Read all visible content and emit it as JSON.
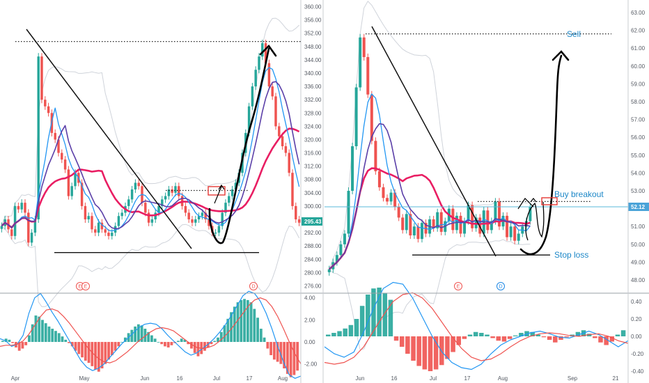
{
  "colors": {
    "up": "#26a69a",
    "down": "#ef5350",
    "ma_slow": "#e91e63",
    "ma_fast": "#5b3fa8",
    "ma_blue": "#2196f3",
    "band": "#cfd3da",
    "macd": "#2196f3",
    "signal": "#ef5350",
    "annotation": "#1e88c8",
    "price_tag": "#26a69a",
    "price_tag_right": "#4aa3d8"
  },
  "chart_data": [
    {
      "type": "candlestick",
      "panel": "left",
      "ylim": [
        274,
        362
      ],
      "y_ticks": [
        "360.00",
        "356.00",
        "352.00",
        "348.00",
        "344.00",
        "340.00",
        "336.00",
        "332.00",
        "328.00",
        "324.00",
        "320.00",
        "316.00",
        "312.00",
        "308.00",
        "304.00",
        "300.00",
        "296.00",
        "292.00",
        "288.00",
        "284.00",
        "280.00",
        "276.00"
      ],
      "x_labels": [
        "Apr",
        "May",
        "Jun",
        "16",
        "Jul",
        "17",
        "Aug"
      ],
      "last_price": "295.43",
      "events": [
        {
          "label": "E",
          "kind": "earnings"
        },
        {
          "label": "E",
          "kind": "earnings"
        },
        {
          "label": "D",
          "kind": "dividend"
        }
      ],
      "lines": {
        "resistance": 349.5,
        "breakout": 304.7,
        "support": 286
      },
      "closes": [
        294,
        296,
        293,
        291,
        300,
        299,
        301,
        298,
        289,
        292,
        296,
        345,
        332,
        330,
        328,
        322,
        320,
        316,
        314,
        311,
        303,
        306,
        310,
        307,
        300,
        296,
        297,
        293,
        292,
        295,
        293,
        292,
        291,
        292,
        294,
        297,
        298,
        300,
        302,
        305,
        307,
        306,
        301,
        298,
        295,
        296,
        298,
        300,
        302,
        303,
        305,
        304,
        306,
        303,
        300,
        298,
        296,
        295,
        296,
        297,
        298,
        296,
        294,
        292,
        292,
        294,
        298,
        301,
        303,
        305,
        307,
        310,
        316,
        322,
        330,
        336,
        341,
        345,
        349,
        343,
        336,
        333,
        324,
        321,
        318,
        316,
        310,
        300,
        296,
        295
      ],
      "macd": {
        "ylim": [
          -3.6,
          4.3
        ],
        "y_ticks": [
          "4.00",
          "2.00",
          "0.00",
          "-2.00"
        ],
        "histogram": [
          0.1,
          0.3,
          0.2,
          -0.1,
          -0.5,
          -0.8,
          -0.6,
          -0.3,
          0.6,
          1.6,
          2.4,
          2.3,
          2.0,
          1.7,
          1.4,
          1.2,
          1.0,
          0.8,
          0.5,
          0.2,
          -0.1,
          -0.4,
          -0.8,
          -1.1,
          -1.4,
          -1.7,
          -1.9,
          -2.2,
          -2.5,
          -2.7,
          -2.4,
          -2.0,
          -1.6,
          -1.2,
          -0.8,
          -0.4,
          0.0,
          0.4,
          0.8,
          1.1,
          1.4,
          1.6,
          1.5,
          1.2,
          0.9,
          0.6,
          0.3,
          0.0,
          -0.2,
          -0.4,
          -0.5,
          -0.3,
          -0.1,
          0.1,
          0.3,
          0.2,
          -0.2,
          -0.6,
          -1.0,
          -1.3,
          -1.1,
          -0.8,
          -0.5,
          -0.2,
          0.1,
          0.4,
          0.9,
          1.5,
          2.1,
          2.7,
          3.2,
          3.6,
          3.8,
          3.9,
          3.8,
          3.6,
          3.0,
          2.2,
          1.2,
          0.4,
          -0.6,
          -1.2,
          -1.6,
          -1.8,
          -2.0,
          -2.4,
          -2.9,
          -3.2,
          -3.0,
          -2.6
        ],
        "macd_line": [
          0.3,
          0.1,
          -0.4,
          -0.2,
          0.6,
          2.6,
          4.0,
          4.4,
          3.6,
          2.7,
          1.9,
          1.0,
          0.1,
          -0.8,
          -1.7,
          -2.3,
          -2.6,
          -2.4,
          -2.0,
          -1.4,
          -0.8,
          -0.2,
          0.3,
          0.8,
          1.3,
          1.6,
          1.7,
          1.6,
          1.2,
          0.6,
          0.1,
          -0.4,
          -0.9,
          -1.2,
          -1.0,
          -0.6,
          -0.2,
          0.3,
          0.9,
          1.6,
          2.4,
          3.3,
          4.2,
          4.6,
          4.4,
          3.7,
          2.6,
          1.2,
          -0.4,
          -1.8,
          -3.0,
          -3.3,
          -3.1
        ],
        "signal_line": [
          -0.4,
          -0.3,
          -0.3,
          -0.2,
          0.1,
          0.7,
          1.5,
          2.3,
          2.9,
          3.0,
          2.8,
          2.3,
          1.7,
          1.0,
          0.3,
          -0.4,
          -1.0,
          -1.5,
          -1.8,
          -1.9,
          -1.7,
          -1.3,
          -0.9,
          -0.4,
          0.1,
          0.5,
          0.9,
          1.2,
          1.3,
          1.2,
          1.0,
          0.6,
          0.2,
          -0.2,
          -0.5,
          -0.6,
          -0.5,
          -0.3,
          0.1,
          0.6,
          1.2,
          1.9,
          2.6,
          3.3,
          3.8,
          4.0,
          3.8,
          3.2,
          2.3,
          1.2,
          0.0,
          -1.1,
          -2.0
        ]
      }
    },
    {
      "type": "candlestick",
      "panel": "right",
      "ylim": [
        47.3,
        63.7
      ],
      "y_ticks": [
        "63.00",
        "62.00",
        "61.00",
        "60.00",
        "59.00",
        "58.00",
        "57.00",
        "56.00",
        "55.00",
        "54.00",
        "53.00",
        "52.00",
        "51.00",
        "50.00",
        "49.00",
        "48.00"
      ],
      "x_labels": [
        "Jun",
        "16",
        "Jul",
        "17",
        "Aug",
        "Sep",
        "21"
      ],
      "last_price": "52.12",
      "events": [
        {
          "label": "E",
          "kind": "earnings"
        },
        {
          "label": "D",
          "kind": "dividend"
        }
      ],
      "annotations": [
        "Sell",
        "Buy breakout",
        "Stop loss"
      ],
      "lines": {
        "resistance": 61.8,
        "breakout": 52.4,
        "support": 49.4
      },
      "closes": [
        48.6,
        49.0,
        49.4,
        50.0,
        50.6,
        53.0,
        55.5,
        58.8,
        61.6,
        60.5,
        58.4,
        55.8,
        54.1,
        53.2,
        52.6,
        52.4,
        52.9,
        52.1,
        51.5,
        50.8,
        51.7,
        50.5,
        51.0,
        50.3,
        51.2,
        50.6,
        51.4,
        50.9,
        51.8,
        50.7,
        51.3,
        52.0,
        50.8,
        51.6,
        50.6,
        51.3,
        52.2,
        50.9,
        51.5,
        50.6,
        51.9,
        50.8,
        51.3,
        52.4,
        51.0,
        51.6,
        50.4,
        51.0,
        50.2,
        50.6,
        51.0,
        51.3,
        52.1
      ],
      "macd": {
        "ylim": [
          -0.52,
          0.48
        ],
        "y_ticks": [
          "0.40",
          "0.20",
          "0.00",
          "-0.20",
          "-0.40"
        ],
        "histogram": [
          0.02,
          0.04,
          0.06,
          0.09,
          0.13,
          0.2,
          0.35,
          0.48,
          0.55,
          0.56,
          0.5,
          0.42,
          -0.05,
          -0.12,
          -0.2,
          -0.28,
          -0.34,
          -0.38,
          -0.4,
          -0.38,
          -0.33,
          -0.26,
          -0.18,
          -0.1,
          -0.03,
          0.02,
          0.05,
          0.04,
          0.02,
          -0.02,
          -0.05,
          -0.06,
          -0.03,
          0.01,
          0.04,
          0.06,
          0.05,
          0.02,
          -0.01,
          -0.04,
          -0.07,
          -0.04,
          -0.01,
          0.02,
          0.05,
          0.07,
          0.03,
          -0.02,
          -0.07,
          -0.1,
          -0.06,
          0.02,
          0.07
        ],
        "macd_line": [
          -0.12,
          -0.2,
          -0.24,
          -0.18,
          0.05,
          0.32,
          0.55,
          0.62,
          0.6,
          0.44,
          0.22,
          0.0,
          -0.18,
          -0.3,
          -0.36,
          -0.38,
          -0.32,
          -0.2,
          -0.1,
          -0.04,
          0.0,
          0.04,
          0.06,
          0.03,
          -0.01,
          -0.02,
          0.02,
          0.06,
          0.02,
          -0.05,
          -0.12,
          -0.05
        ],
        "signal_line": [
          -0.3,
          -0.32,
          -0.3,
          -0.24,
          -0.12,
          0.06,
          0.24,
          0.4,
          0.48,
          0.5,
          0.44,
          0.32,
          0.16,
          0.0,
          -0.14,
          -0.24,
          -0.28,
          -0.26,
          -0.2,
          -0.12,
          -0.05,
          0.0,
          0.03,
          0.04,
          0.03,
          0.01,
          0.0,
          0.02,
          0.03,
          0.0,
          -0.05,
          -0.08
        ]
      }
    }
  ]
}
